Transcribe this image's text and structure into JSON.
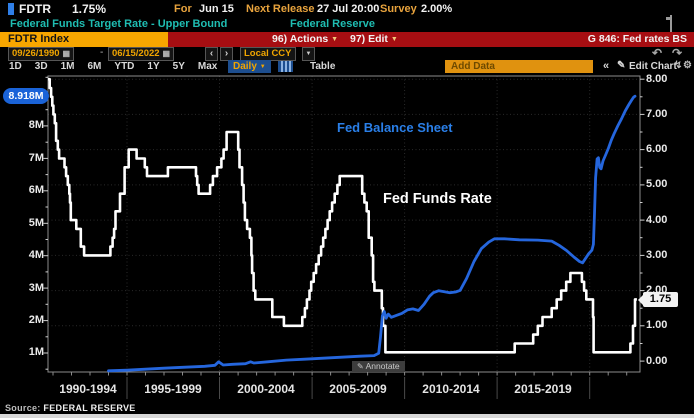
{
  "header": {
    "ticker": "FDTR",
    "last_value": "1.75%",
    "for_label": "For",
    "for_date": "Jun 15",
    "next_release_label": "Next Release",
    "next_release_value": "27 Jul 20:00",
    "survey_label": "Survey",
    "survey_value": "2.00%",
    "description": "Federal Funds Target Rate - Upper Bound",
    "issuer": "Federal Reserve"
  },
  "titlebar": {
    "security": "FDTR Index",
    "actions_label": "96) Actions",
    "edit_label": "97) Edit",
    "chart_id": "G 846: Fed rates BS"
  },
  "toolbar": {
    "date_from": "09/26/1990",
    "date_to": "06/15/2022",
    "currency": "Local CCY",
    "periods": [
      "1D",
      "3D",
      "1M",
      "6M",
      "YTD",
      "1Y",
      "5Y",
      "Max"
    ],
    "frequency": "Daily",
    "table_label": "Table",
    "add_data_placeholder": "Add Data",
    "edit_chart_label": "Edit Chart"
  },
  "icons": {
    "calendar": "▦",
    "prev": "‹",
    "next": "›",
    "dropdown": "▼",
    "undo": "↶",
    "redo": "↷",
    "collapse": "«",
    "pencil": "✎",
    "gear": "⚙",
    "zap": "↯"
  },
  "chart": {
    "left_badge": "8.918M",
    "right_badge": "1.75",
    "series_label_blue": "Fed Balance Sheet",
    "series_label_white": "Fed Funds Rate",
    "annotate_label": "Annotate",
    "source_label": "Source:",
    "source_value": "FEDERAL RESERVE",
    "colors": {
      "blue_line": "#2566dd",
      "white_line": "#ffffff",
      "badge_blue": "#1a63d8",
      "accent_orange": "#f7a600",
      "red_bar": "#a60e12",
      "teal": "#1fbdb2",
      "grid": "#2a2a2a",
      "frame": "#8c8c8c"
    }
  },
  "chart_data": {
    "type": "line",
    "title": "",
    "xlabel": "",
    "legend_position": "inline-annotations",
    "grid": true,
    "xlim": [
      1990.73,
      2022.72
    ],
    "x_axis": {
      "labels": [
        "1990-1994",
        "1995-1999",
        "2000-2004",
        "2005-2009",
        "2010-2014",
        "2015-2019"
      ],
      "gridline_years": [
        1995,
        2000,
        2005,
        2010,
        2015,
        2020
      ],
      "minor_tick_step_years": 1
    },
    "left_axis": {
      "unit": "millions (USD)",
      "ylim": [
        0.414,
        9.54
      ],
      "ticks": [
        {
          "value": 8,
          "label": "8M"
        },
        {
          "value": 7,
          "label": "7M"
        },
        {
          "value": 6,
          "label": "6M"
        },
        {
          "value": 5,
          "label": "5M"
        },
        {
          "value": 4,
          "label": "4M"
        },
        {
          "value": 3,
          "label": "3M"
        },
        {
          "value": 2,
          "label": "2M"
        },
        {
          "value": 1,
          "label": "1M"
        }
      ],
      "last_value": 8.918,
      "last_value_label": "8.918M"
    },
    "right_axis": {
      "unit": "percent",
      "ylim": [
        -0.31,
        8.09
      ],
      "ticks": [
        {
          "value": 8,
          "label": "8.00"
        },
        {
          "value": 7,
          "label": "7.00"
        },
        {
          "value": 6,
          "label": "6.00"
        },
        {
          "value": 5,
          "label": "5.00"
        },
        {
          "value": 4,
          "label": "4.00"
        },
        {
          "value": 3,
          "label": "3.00"
        },
        {
          "value": 2,
          "label": "2.00"
        },
        {
          "value": 1,
          "label": "1.00"
        },
        {
          "value": 0,
          "label": "0.00"
        }
      ],
      "last_value": 1.75,
      "last_value_label": "1.75"
    },
    "series": [
      {
        "name": "Fed Balance Sheet",
        "axis": "left",
        "color": "#2566dd",
        "style": "smooth",
        "points": [
          [
            1994.0,
            0.45
          ],
          [
            1995.0,
            0.47
          ],
          [
            1996.0,
            0.5
          ],
          [
            1997.0,
            0.53
          ],
          [
            1998.0,
            0.56
          ],
          [
            1999.2,
            0.59
          ],
          [
            1999.75,
            0.62
          ],
          [
            1999.95,
            0.73
          ],
          [
            2000.2,
            0.63
          ],
          [
            2000.7,
            0.65
          ],
          [
            2001.4,
            0.67
          ],
          [
            2001.68,
            0.73
          ],
          [
            2001.85,
            0.69
          ],
          [
            2002.6,
            0.73
          ],
          [
            2003.6,
            0.78
          ],
          [
            2004.6,
            0.81
          ],
          [
            2005.6,
            0.84
          ],
          [
            2006.6,
            0.87
          ],
          [
            2007.6,
            0.9
          ],
          [
            2008.35,
            0.92
          ],
          [
            2008.6,
            0.99
          ],
          [
            2008.7,
            1.5
          ],
          [
            2008.8,
            2.15
          ],
          [
            2008.9,
            2.28
          ],
          [
            2009.0,
            2.07
          ],
          [
            2009.12,
            2.2
          ],
          [
            2009.28,
            2.1
          ],
          [
            2009.55,
            2.16
          ],
          [
            2009.85,
            2.22
          ],
          [
            2010.15,
            2.33
          ],
          [
            2010.45,
            2.36
          ],
          [
            2010.75,
            2.31
          ],
          [
            2011.05,
            2.5
          ],
          [
            2011.35,
            2.75
          ],
          [
            2011.55,
            2.86
          ],
          [
            2011.85,
            2.92
          ],
          [
            2012.15,
            2.89
          ],
          [
            2012.45,
            2.86
          ],
          [
            2012.75,
            2.88
          ],
          [
            2013.0,
            2.93
          ],
          [
            2013.35,
            3.3
          ],
          [
            2013.75,
            3.82
          ],
          [
            2014.15,
            4.22
          ],
          [
            2014.55,
            4.42
          ],
          [
            2014.85,
            4.52
          ],
          [
            2015.4,
            4.52
          ],
          [
            2016.2,
            4.49
          ],
          [
            2017.2,
            4.48
          ],
          [
            2017.95,
            4.45
          ],
          [
            2018.35,
            4.32
          ],
          [
            2018.75,
            4.16
          ],
          [
            2019.15,
            3.96
          ],
          [
            2019.45,
            3.82
          ],
          [
            2019.62,
            3.78
          ],
          [
            2019.78,
            3.92
          ],
          [
            2019.95,
            4.06
          ],
          [
            2020.12,
            4.17
          ],
          [
            2020.2,
            4.35
          ],
          [
            2020.26,
            5.3
          ],
          [
            2020.32,
            6.4
          ],
          [
            2020.4,
            6.98
          ],
          [
            2020.47,
            7.02
          ],
          [
            2020.54,
            6.72
          ],
          [
            2020.62,
            6.68
          ],
          [
            2020.72,
            6.92
          ],
          [
            2020.87,
            7.12
          ],
          [
            2021.02,
            7.32
          ],
          [
            2021.17,
            7.56
          ],
          [
            2021.32,
            7.76
          ],
          [
            2021.52,
            8.0
          ],
          [
            2021.72,
            8.22
          ],
          [
            2021.92,
            8.46
          ],
          [
            2022.12,
            8.66
          ],
          [
            2022.27,
            8.8
          ],
          [
            2022.38,
            8.89
          ],
          [
            2022.45,
            8.918
          ]
        ]
      },
      {
        "name": "Fed Funds Rate",
        "axis": "right",
        "color": "#ffffff",
        "style": "step",
        "points": [
          [
            1990.73,
            8.0
          ],
          [
            1990.82,
            7.75
          ],
          [
            1990.9,
            7.5
          ],
          [
            1990.96,
            7.25
          ],
          [
            1991.02,
            7.0
          ],
          [
            1991.1,
            6.75
          ],
          [
            1991.17,
            6.25
          ],
          [
            1991.26,
            6.0
          ],
          [
            1991.33,
            5.75
          ],
          [
            1991.62,
            5.5
          ],
          [
            1991.71,
            5.25
          ],
          [
            1991.8,
            5.0
          ],
          [
            1991.88,
            4.75
          ],
          [
            1991.92,
            4.5
          ],
          [
            1991.96,
            4.0
          ],
          [
            1992.26,
            3.75
          ],
          [
            1992.5,
            3.25
          ],
          [
            1992.68,
            3.0
          ],
          [
            1994.1,
            3.25
          ],
          [
            1994.22,
            3.5
          ],
          [
            1994.3,
            3.75
          ],
          [
            1994.38,
            4.25
          ],
          [
            1994.62,
            4.75
          ],
          [
            1994.87,
            5.5
          ],
          [
            1995.09,
            6.0
          ],
          [
            1995.52,
            5.75
          ],
          [
            1995.96,
            5.5
          ],
          [
            1996.08,
            5.25
          ],
          [
            1997.21,
            5.5
          ],
          [
            1998.73,
            5.25
          ],
          [
            1998.79,
            5.0
          ],
          [
            1998.87,
            4.75
          ],
          [
            1999.49,
            5.0
          ],
          [
            1999.64,
            5.25
          ],
          [
            1999.87,
            5.5
          ],
          [
            2000.1,
            5.75
          ],
          [
            2000.22,
            6.0
          ],
          [
            2000.38,
            6.5
          ],
          [
            2001.01,
            6.0
          ],
          [
            2001.08,
            5.5
          ],
          [
            2001.22,
            5.0
          ],
          [
            2001.3,
            4.5
          ],
          [
            2001.37,
            4.0
          ],
          [
            2001.49,
            3.75
          ],
          [
            2001.64,
            3.5
          ],
          [
            2001.72,
            3.0
          ],
          [
            2001.76,
            2.5
          ],
          [
            2001.84,
            2.0
          ],
          [
            2001.93,
            1.75
          ],
          [
            2002.85,
            1.25
          ],
          [
            2003.48,
            1.0
          ],
          [
            2004.47,
            1.25
          ],
          [
            2004.61,
            1.5
          ],
          [
            2004.72,
            1.75
          ],
          [
            2004.86,
            2.0
          ],
          [
            2004.95,
            2.25
          ],
          [
            2005.09,
            2.5
          ],
          [
            2005.22,
            2.75
          ],
          [
            2005.36,
            3.0
          ],
          [
            2005.49,
            3.25
          ],
          [
            2005.6,
            3.5
          ],
          [
            2005.72,
            3.75
          ],
          [
            2005.84,
            4.0
          ],
          [
            2005.95,
            4.25
          ],
          [
            2006.08,
            4.5
          ],
          [
            2006.22,
            4.75
          ],
          [
            2006.37,
            5.0
          ],
          [
            2006.49,
            5.25
          ],
          [
            2007.71,
            4.75
          ],
          [
            2007.83,
            4.5
          ],
          [
            2007.95,
            4.25
          ],
          [
            2008.06,
            3.5
          ],
          [
            2008.22,
            3.0
          ],
          [
            2008.3,
            2.25
          ],
          [
            2008.37,
            2.0
          ],
          [
            2008.77,
            1.5
          ],
          [
            2008.83,
            1.0
          ],
          [
            2008.96,
            0.25
          ],
          [
            2015.95,
            0.5
          ],
          [
            2016.95,
            0.75
          ],
          [
            2017.2,
            1.0
          ],
          [
            2017.45,
            1.25
          ],
          [
            2017.95,
            1.5
          ],
          [
            2018.22,
            1.75
          ],
          [
            2018.46,
            2.0
          ],
          [
            2018.73,
            2.25
          ],
          [
            2018.96,
            2.5
          ],
          [
            2019.58,
            2.25
          ],
          [
            2019.7,
            2.0
          ],
          [
            2019.82,
            1.75
          ],
          [
            2020.18,
            1.25
          ],
          [
            2020.21,
            0.25
          ],
          [
            2022.2,
            0.5
          ],
          [
            2022.34,
            1.0
          ],
          [
            2022.45,
            1.75
          ],
          [
            2022.55,
            1.75
          ]
        ]
      }
    ]
  }
}
